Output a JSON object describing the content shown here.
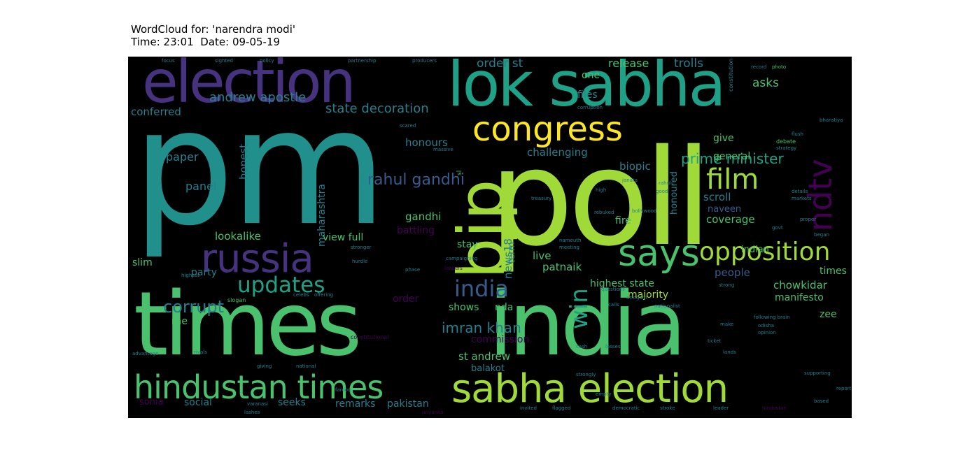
{
  "header": {
    "line1": "WordCloud for: 'narendra modi'",
    "line2": "Time: 23:01  Date: 09-05-19"
  },
  "palette": {
    "purple_dark": "#440154",
    "purple": "#46327e",
    "blue": "#365c8d",
    "teal_blue": "#277f8e",
    "teal": "#1fa187",
    "green": "#4ac16d",
    "lime": "#a0da39",
    "yellow": "#fde725"
  },
  "words": [
    {
      "text": "pm",
      "color": "#21908d"
    },
    {
      "text": "poll",
      "color": "#a0da39"
    },
    {
      "text": "times",
      "color": "#4ac16d"
    },
    {
      "text": "india",
      "color": "#4ac16d"
    },
    {
      "text": "lok sabha",
      "color": "#1fa187"
    },
    {
      "text": "election",
      "color": "#46327e"
    },
    {
      "text": "bjp",
      "color": "#a0da39"
    },
    {
      "text": "congress",
      "color": "#fde725"
    },
    {
      "text": "sabha election",
      "color": "#a0da39"
    },
    {
      "text": "hindustan times",
      "color": "#4ac16d"
    },
    {
      "text": "russia",
      "color": "#46327e"
    },
    {
      "text": "says",
      "color": "#4ac16d"
    },
    {
      "text": "opposition",
      "color": "#a0da39"
    },
    {
      "text": "film",
      "color": "#a0da39"
    },
    {
      "text": "ndtv",
      "color": "#440154"
    },
    {
      "text": "updates",
      "color": "#1fa187"
    },
    {
      "text": "india",
      "color": "#365c8d"
    },
    {
      "text": "rahul gandhi",
      "color": "#365c8d"
    },
    {
      "text": "prime minister",
      "color": "#1fa187"
    },
    {
      "text": "win",
      "color": "#1fa187"
    },
    {
      "text": "imran khan",
      "color": "#277f8e"
    },
    {
      "text": "corrupt",
      "color": "#277f8e"
    },
    {
      "text": "order st",
      "color": "#277f8e"
    },
    {
      "text": "andrew apostle",
      "color": "#277f8e"
    },
    {
      "text": "state decoration",
      "color": "#277f8e"
    },
    {
      "text": "conferred",
      "color": "#277f8e"
    },
    {
      "text": "release",
      "color": "#4ac16d"
    },
    {
      "text": "trolls",
      "color": "#277f8e"
    },
    {
      "text": "asks",
      "color": "#4ac16d"
    },
    {
      "text": "files",
      "color": "#277f8e"
    },
    {
      "text": "one",
      "color": "#4ac16d"
    },
    {
      "text": "honours",
      "color": "#277f8e"
    },
    {
      "text": "challenging",
      "color": "#277f8e"
    },
    {
      "text": "biopic",
      "color": "#277f8e"
    },
    {
      "text": "give",
      "color": "#4ac16d"
    },
    {
      "text": "general",
      "color": "#4ac16d"
    },
    {
      "text": "paper",
      "color": "#277f8e"
    },
    {
      "text": "panel",
      "color": "#277f8e"
    },
    {
      "text": "honest",
      "color": "#277f8e"
    },
    {
      "text": "maharashtra",
      "color": "#277f8e"
    },
    {
      "text": "gandhi",
      "color": "#4ac16d"
    },
    {
      "text": "news18",
      "color": "#277f8e"
    },
    {
      "text": "fire",
      "color": "#4ac16d"
    },
    {
      "text": "scroll",
      "color": "#277f8e"
    },
    {
      "text": "naveen",
      "color": "#365c8d"
    },
    {
      "text": "coverage",
      "color": "#4ac16d"
    },
    {
      "text": "honoured",
      "color": "#277f8e"
    },
    {
      "text": "battling",
      "color": "#440154"
    },
    {
      "text": "lookalike",
      "color": "#4ac16d"
    },
    {
      "text": "view full",
      "color": "#4ac16d"
    },
    {
      "text": "stay",
      "color": "#4ac16d"
    },
    {
      "text": "live",
      "color": "#4ac16d"
    },
    {
      "text": "term",
      "color": "#277f8e"
    },
    {
      "text": "patnaik",
      "color": "#4ac16d"
    },
    {
      "text": "people",
      "color": "#365c8d"
    },
    {
      "text": "indian",
      "color": "#4ac16d"
    },
    {
      "text": "times",
      "color": "#4ac16d"
    },
    {
      "text": "slim",
      "color": "#4ac16d"
    },
    {
      "text": "party",
      "color": "#277f8e"
    },
    {
      "text": "highest state",
      "color": "#4ac16d"
    },
    {
      "text": "chowkidar",
      "color": "#4ac16d"
    },
    {
      "text": "majority",
      "color": "#a0da39"
    },
    {
      "text": "manifesto",
      "color": "#4ac16d"
    },
    {
      "text": "order",
      "color": "#440154"
    },
    {
      "text": "shows",
      "color": "#4ac16d"
    },
    {
      "text": "nda",
      "color": "#4ac16d"
    },
    {
      "text": "zee",
      "color": "#4ac16d"
    },
    {
      "text": "rae",
      "color": "#4ac16d"
    },
    {
      "text": "commission",
      "color": "#440154"
    },
    {
      "text": "st andrew",
      "color": "#4ac16d"
    },
    {
      "text": "balakot",
      "color": "#277f8e"
    },
    {
      "text": "sonia",
      "color": "#440154"
    },
    {
      "text": "social",
      "color": "#277f8e"
    },
    {
      "text": "seeks",
      "color": "#277f8e"
    },
    {
      "text": "remarks",
      "color": "#277f8e"
    },
    {
      "text": "pakistan",
      "color": "#277f8e"
    },
    {
      "text": "focus",
      "color": "#277f8e"
    },
    {
      "text": "sighted",
      "color": "#277f8e"
    },
    {
      "text": "policy",
      "color": "#277f8e"
    },
    {
      "text": "partnership",
      "color": "#277f8e"
    },
    {
      "text": "producers",
      "color": "#277f8e"
    },
    {
      "text": "record",
      "color": "#277f8e"
    },
    {
      "text": "photo",
      "color": "#4ac16d"
    },
    {
      "text": "constitution",
      "color": "#277f8e"
    },
    {
      "text": "corruption",
      "color": "#277f8e"
    },
    {
      "text": "bharatiya",
      "color": "#277f8e"
    },
    {
      "text": "flush",
      "color": "#277f8e"
    },
    {
      "text": "debate",
      "color": "#4ac16d"
    },
    {
      "text": "strategy",
      "color": "#277f8e"
    },
    {
      "text": "scared",
      "color": "#277f8e"
    },
    {
      "text": "massive",
      "color": "#277f8e"
    },
    {
      "text": "janata",
      "color": "#277f8e"
    },
    {
      "text": "rahul",
      "color": "#277f8e"
    },
    {
      "text": "high",
      "color": "#277f8e"
    },
    {
      "text": "good",
      "color": "#277f8e"
    },
    {
      "text": "details",
      "color": "#277f8e"
    },
    {
      "text": "markets",
      "color": "#277f8e"
    },
    {
      "text": "rebuked",
      "color": "#277f8e"
    },
    {
      "text": "bollywood",
      "color": "#277f8e"
    },
    {
      "text": "govt",
      "color": "#277f8e"
    },
    {
      "text": "proper",
      "color": "#277f8e"
    },
    {
      "text": "began",
      "color": "#277f8e"
    },
    {
      "text": "stronger",
      "color": "#277f8e"
    },
    {
      "text": "campaigning",
      "color": "#277f8e"
    },
    {
      "text": "treasury",
      "color": "#277f8e"
    },
    {
      "text": "meeting",
      "color": "#277f8e"
    },
    {
      "text": "nameuth",
      "color": "#277f8e"
    },
    {
      "text": "hurdle",
      "color": "#277f8e"
    },
    {
      "text": "leaders",
      "color": "#440154"
    },
    {
      "text": "phase",
      "color": "#277f8e"
    },
    {
      "text": "highest",
      "color": "#277f8e"
    },
    {
      "text": "slogan",
      "color": "#4ac16d"
    },
    {
      "text": "celebs",
      "color": "#277f8e"
    },
    {
      "text": "offering",
      "color": "#277f8e"
    },
    {
      "text": "calls",
      "color": "#277f8e"
    },
    {
      "text": "questions",
      "color": "#277f8e"
    },
    {
      "text": "arrogant",
      "color": "#277f8e"
    },
    {
      "text": "nationalist",
      "color": "#277f8e"
    },
    {
      "text": "strong",
      "color": "#277f8e"
    },
    {
      "text": "following brain",
      "color": "#277f8e"
    },
    {
      "text": "odisha",
      "color": "#277f8e"
    },
    {
      "text": "opinion",
      "color": "#277f8e"
    },
    {
      "text": "lands",
      "color": "#277f8e"
    },
    {
      "text": "losses",
      "color": "#277f8e"
    },
    {
      "text": "rivals",
      "color": "#277f8e"
    },
    {
      "text": "advantage",
      "color": "#277f8e"
    },
    {
      "text": "constitutional",
      "color": "#440154"
    },
    {
      "text": "giving",
      "color": "#277f8e"
    },
    {
      "text": "national",
      "color": "#277f8e"
    },
    {
      "text": "strongly",
      "color": "#277f8e"
    },
    {
      "text": "supporting",
      "color": "#277f8e"
    },
    {
      "text": "priyanka",
      "color": "#440154"
    },
    {
      "text": "invited",
      "color": "#277f8e"
    },
    {
      "text": "flagged",
      "color": "#277f8e"
    },
    {
      "text": "democratic",
      "color": "#277f8e"
    },
    {
      "text": "leader",
      "color": "#277f8e"
    },
    {
      "text": "stroke",
      "color": "#277f8e"
    },
    {
      "text": "lashes",
      "color": "#277f8e"
    },
    {
      "text": "empty",
      "color": "#277f8e"
    },
    {
      "text": "report",
      "color": "#277f8e"
    },
    {
      "text": "based",
      "color": "#277f8e"
    },
    {
      "text": "hindustan",
      "color": "#440154"
    },
    {
      "text": "farooq",
      "color": "#277f8e"
    },
    {
      "text": "varanasi",
      "color": "#277f8e"
    },
    {
      "text": "ticket",
      "color": "#277f8e"
    },
    {
      "text": "make",
      "color": "#277f8e"
    },
    {
      "text": "cash",
      "color": "#277f8e"
    },
    {
      "text": "sl",
      "color": "#4ac16d"
    }
  ]
}
